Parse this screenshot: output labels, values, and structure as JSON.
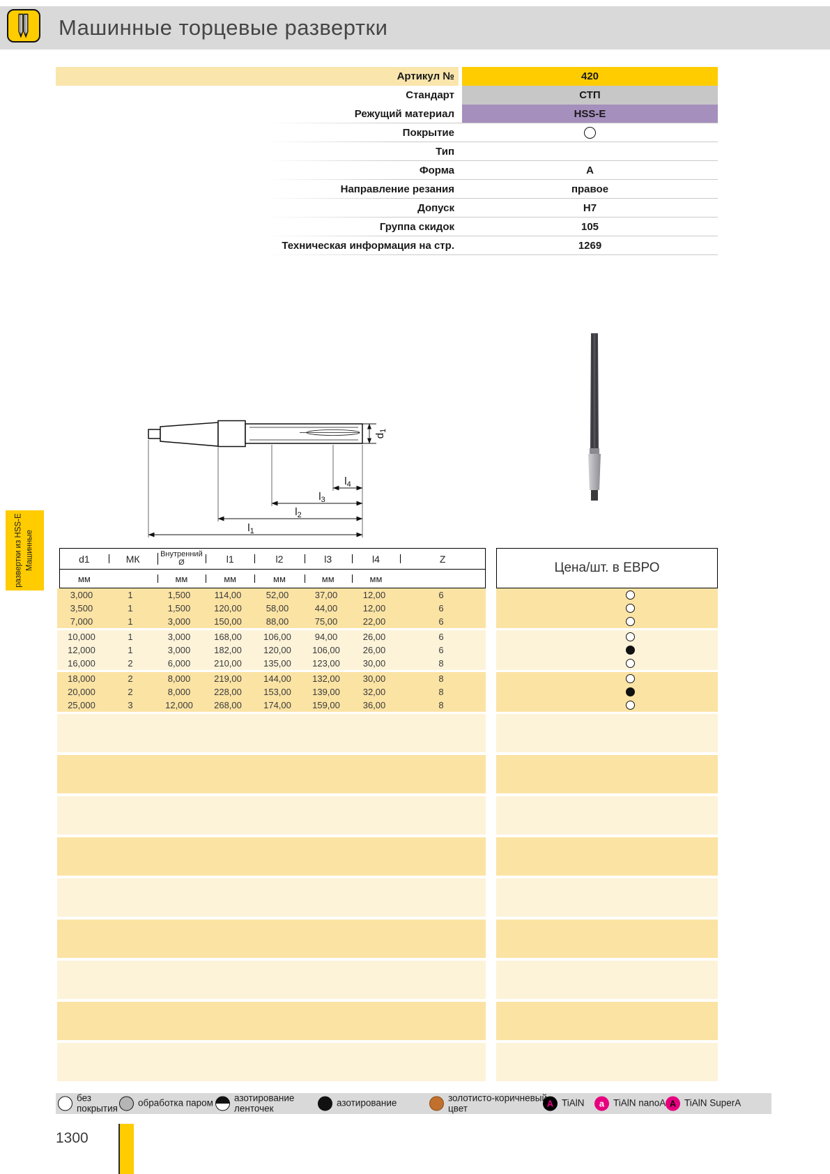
{
  "header": {
    "title": "Машинные торцевые развертки"
  },
  "sidebar_tab": {
    "line1": "Машинные",
    "line2": "развертки из HSS-E"
  },
  "specs": {
    "rows": [
      {
        "label": "Артикул №",
        "value": "420",
        "style": "gold"
      },
      {
        "label": "Стандарт",
        "value": "СТП",
        "style": "gray"
      },
      {
        "label": "Режущий материал",
        "value": "HSS-E",
        "style": "purple"
      },
      {
        "label": "Покрытие",
        "value": "",
        "style": "circle"
      },
      {
        "label": "Тип",
        "value": "",
        "style": "plain"
      },
      {
        "label": "Форма",
        "value": "A",
        "style": "plain"
      },
      {
        "label": "Направление резания",
        "value": "правое",
        "style": "plain"
      },
      {
        "label": "Допуск",
        "value": "H7",
        "style": "plain"
      },
      {
        "label": "Группа скидок",
        "value": "105",
        "style": "plain"
      },
      {
        "label": "Техническая информация на стр.",
        "value": "1269",
        "style": "plain"
      }
    ]
  },
  "diagram": {
    "dims": [
      {
        "base": "l",
        "sub": "4"
      },
      {
        "base": "l",
        "sub": "3"
      },
      {
        "base": "l",
        "sub": "2"
      },
      {
        "base": "l",
        "sub": "1"
      },
      {
        "base": "d",
        "sub": "1"
      }
    ]
  },
  "table": {
    "columns": [
      {
        "label": "d1",
        "unit": "мм"
      },
      {
        "label": "МК",
        "unit": ""
      },
      {
        "label": "Внутренний Ø",
        "unit": "мм"
      },
      {
        "label": "l1",
        "unit": "мм"
      },
      {
        "label": "l2",
        "unit": "мм"
      },
      {
        "label": "l3",
        "unit": "мм"
      },
      {
        "label": "l4",
        "unit": "мм"
      },
      {
        "label": "Z",
        "unit": ""
      }
    ],
    "price_header": "Цена/шт. в ЕВРО",
    "rows": [
      {
        "cells": [
          "3,000",
          "1",
          "1,500",
          "114,00",
          "52,00",
          "37,00",
          "12,00",
          "6"
        ],
        "coating": "open"
      },
      {
        "cells": [
          "3,500",
          "1",
          "1,500",
          "120,00",
          "58,00",
          "44,00",
          "12,00",
          "6"
        ],
        "coating": "open"
      },
      {
        "cells": [
          "7,000",
          "1",
          "3,000",
          "150,00",
          "88,00",
          "75,00",
          "22,00",
          "6"
        ],
        "coating": "open"
      },
      {
        "cells": [
          "10,000",
          "1",
          "3,000",
          "168,00",
          "106,00",
          "94,00",
          "26,00",
          "6"
        ],
        "coating": "open"
      },
      {
        "cells": [
          "12,000",
          "1",
          "3,000",
          "182,00",
          "120,00",
          "106,00",
          "26,00",
          "6"
        ],
        "coating": "filled"
      },
      {
        "cells": [
          "16,000",
          "2",
          "6,000",
          "210,00",
          "135,00",
          "123,00",
          "30,00",
          "8"
        ],
        "coating": "open"
      },
      {
        "cells": [
          "18,000",
          "2",
          "8,000",
          "219,00",
          "144,00",
          "132,00",
          "30,00",
          "8"
        ],
        "coating": "open"
      },
      {
        "cells": [
          "20,000",
          "2",
          "8,000",
          "228,00",
          "153,00",
          "139,00",
          "32,00",
          "8"
        ],
        "coating": "filled"
      },
      {
        "cells": [
          "25,000",
          "3",
          "12,000",
          "268,00",
          "174,00",
          "159,00",
          "36,00",
          "8"
        ],
        "coating": "open"
      }
    ],
    "empty_band_count": 9
  },
  "legend": {
    "items": [
      {
        "icon": "circle-open",
        "label": "без покрытия"
      },
      {
        "icon": "circle-gray",
        "label": "обработка паром"
      },
      {
        "icon": "circle-half",
        "label": "азотирование ленточек"
      },
      {
        "icon": "circle-filled",
        "label": "азотирование"
      },
      {
        "icon": "circle-orange",
        "label": "золотисто-коричневый цвет"
      },
      {
        "icon": "badge-black",
        "letter": "A",
        "label": "TiAlN"
      },
      {
        "icon": "badge-magenta-lc",
        "letter": "a",
        "label": "TiAlN nanoA"
      },
      {
        "icon": "badge-magenta",
        "letter": "A",
        "label": "TiAlN SuperA"
      }
    ]
  },
  "footer": {
    "page_number": "1300"
  },
  "colors": {
    "accent_gold": "#ffcc00",
    "std_gray": "#c7c7c7",
    "material_purple": "#a58fbd",
    "band_dark": "#fbe3a4",
    "band_light": "#fdf3d9",
    "magenta": "#e6007e",
    "legend_orange": "#c2702d"
  }
}
